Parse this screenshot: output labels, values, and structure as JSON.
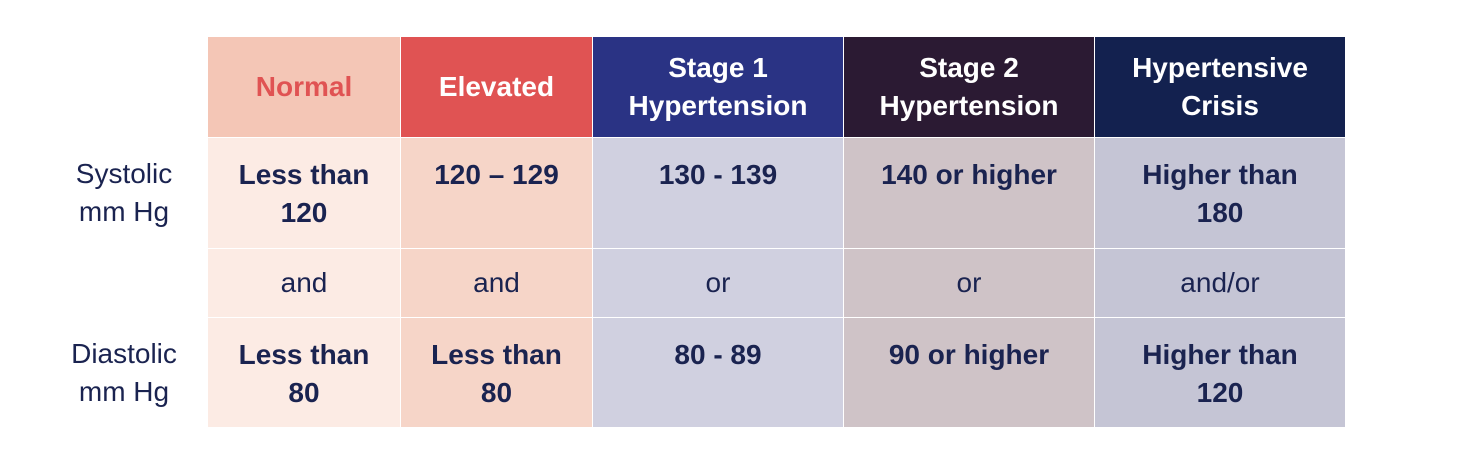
{
  "colors": {
    "normal_header_bg": "#f4c6b6",
    "normal_header_text": "#e05353",
    "normal_body_bg": "#fcebe4",
    "elevated_header_bg": "#e05353",
    "elevated_body_bg": "#f6d5c8",
    "stage1_header_bg": "#2a3384",
    "stage1_body_bg": "#d0d0e0",
    "stage2_header_bg": "#2b1a33",
    "stage2_body_bg": "#cfc3c7",
    "crisis_header_bg": "#13214f",
    "crisis_body_bg": "#c5c5d5",
    "text_dark": "#1a2350"
  },
  "row_labels": {
    "systolic": "Systolic\nmm Hg",
    "diastolic": "Diastolic\nmm Hg"
  },
  "columns": [
    {
      "header": "Normal",
      "systolic": "Less than\n120",
      "connector": "and",
      "diastolic": "Less than\n80"
    },
    {
      "header": "Elevated",
      "systolic": "120 – 129",
      "connector": "and",
      "diastolic": "Less than\n80"
    },
    {
      "header": "Stage 1\nHypertension",
      "systolic": "130 - 139",
      "connector": "or",
      "diastolic": "80 - 89"
    },
    {
      "header": "Stage 2\nHypertension",
      "systolic": "140 or higher",
      "connector": "or",
      "diastolic": "90 or higher"
    },
    {
      "header": "Hypertensive\nCrisis",
      "systolic": "Higher than\n180",
      "connector": "and/or",
      "diastolic": "Higher than\n120"
    }
  ]
}
